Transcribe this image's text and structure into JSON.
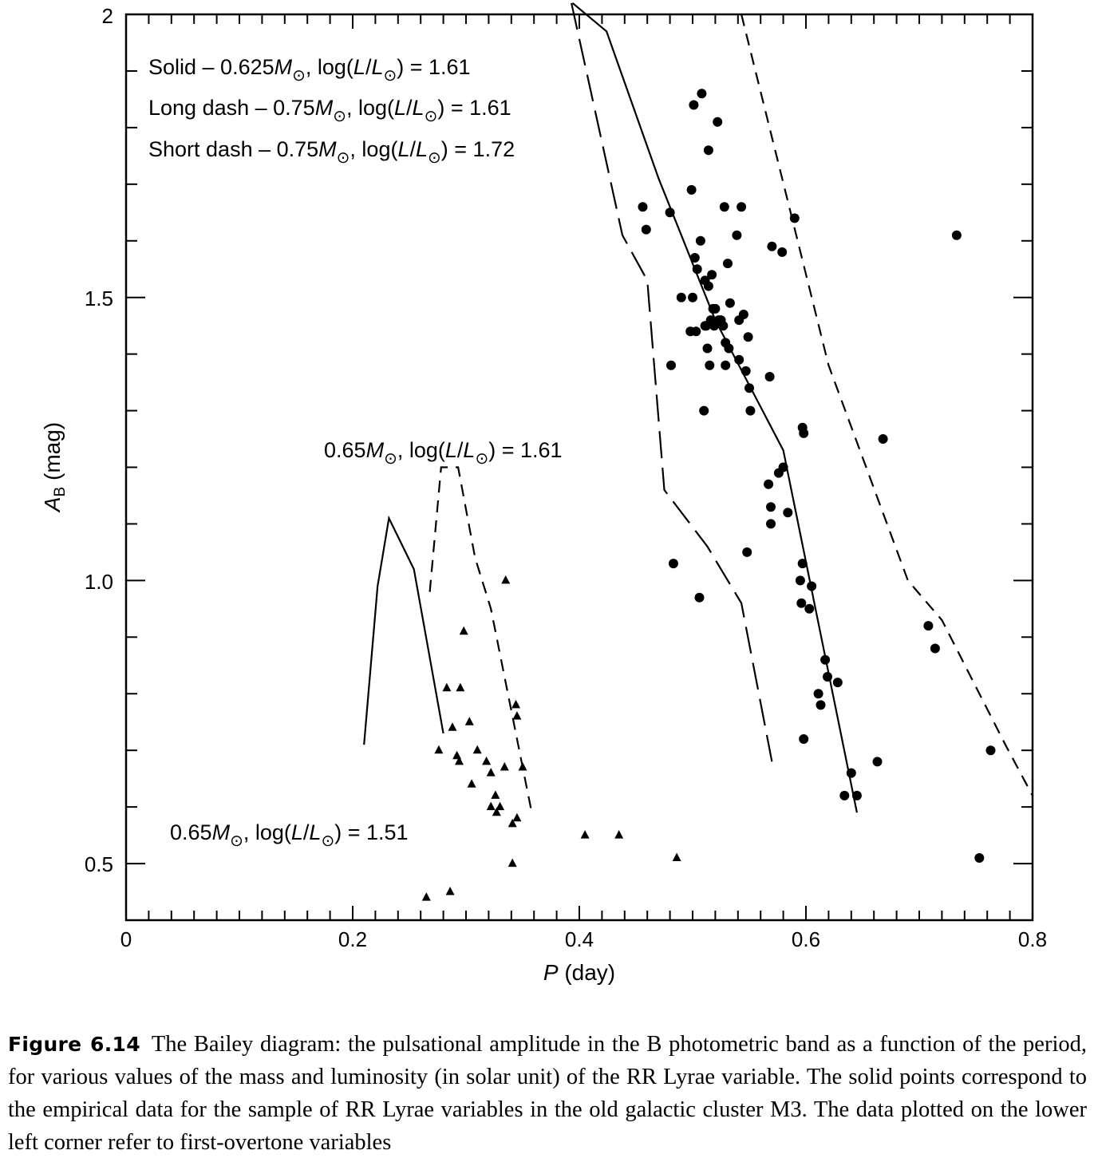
{
  "chart_data": {
    "type": "scatter",
    "title": "",
    "xlabel": "P (day)",
    "ylabel": "A_B (mag)",
    "xlim": [
      0,
      0.8
    ],
    "ylim": [
      0.4,
      2.0
    ],
    "x_ticks": [
      "0",
      "0.2",
      "0.4",
      "0.6",
      "0.8"
    ],
    "y_ticks": [
      "0.5",
      "1.0",
      "1.5",
      "2"
    ],
    "legend": [
      {
        "key": "Solid",
        "mass": "0.625",
        "loglum": "1.61"
      },
      {
        "key": "Long dash",
        "mass": "0.75",
        "loglum": "1.61"
      },
      {
        "key": "Short dash",
        "mass": "0.75",
        "loglum": "1.72"
      }
    ],
    "annotations": [
      {
        "mass": "0.65",
        "loglum": "1.61"
      },
      {
        "mass": "0.65",
        "loglum": "1.51"
      }
    ],
    "series": [
      {
        "name": "Solid – 0.625 Msun, log(L/Lsun) = 1.61 (fundamental)",
        "style": "solid",
        "points": [
          [
            0.394,
            2.02
          ],
          [
            0.424,
            1.97
          ],
          [
            0.47,
            1.71
          ],
          [
            0.52,
            1.46
          ],
          [
            0.58,
            1.23
          ],
          [
            0.645,
            0.59
          ]
        ]
      },
      {
        "name": "Long dash – 0.75 Msun, log(L/Lsun) = 1.61 (fundamental)",
        "style": "long-dash",
        "points": [
          [
            0.393,
            2.02
          ],
          [
            0.438,
            1.61
          ],
          [
            0.46,
            1.53
          ],
          [
            0.475,
            1.16
          ],
          [
            0.513,
            1.06
          ],
          [
            0.543,
            0.96
          ],
          [
            0.57,
            0.68
          ]
        ]
      },
      {
        "name": "Short dash – 0.75 Msun, log(L/Lsun) = 1.72 (fundamental)",
        "style": "short-dash",
        "points": [
          [
            0.543,
            2.0
          ],
          [
            0.62,
            1.38
          ],
          [
            0.69,
            1.0
          ],
          [
            0.72,
            0.93
          ],
          [
            0.776,
            0.71
          ],
          [
            0.8,
            0.62
          ]
        ]
      },
      {
        "name": "0.65 Msun, log(L/Lsun) = 1.51 (first overtone)",
        "style": "solid",
        "points": [
          [
            0.21,
            0.71
          ],
          [
            0.222,
            0.99
          ],
          [
            0.232,
            1.11
          ],
          [
            0.254,
            1.02
          ],
          [
            0.28,
            0.73
          ]
        ]
      },
      {
        "name": "0.65 Msun, log(L/Lsun) = 1.61 (first overtone)",
        "style": "short-dash",
        "points": [
          [
            0.268,
            0.98
          ],
          [
            0.278,
            1.2
          ],
          [
            0.293,
            1.2
          ],
          [
            0.308,
            1.04
          ],
          [
            0.322,
            0.95
          ],
          [
            0.358,
            0.59
          ]
        ]
      },
      {
        "name": "M3 RRab (fundamental, solid points)",
        "marker": "circle",
        "points": [
          [
            0.456,
            1.66
          ],
          [
            0.459,
            1.62
          ],
          [
            0.48,
            1.65
          ],
          [
            0.481,
            1.38
          ],
          [
            0.483,
            1.03
          ],
          [
            0.49,
            1.5
          ],
          [
            0.498,
            1.44
          ],
          [
            0.499,
            1.69
          ],
          [
            0.5,
            1.5
          ],
          [
            0.501,
            1.84
          ],
          [
            0.502,
            1.57
          ],
          [
            0.503,
            1.44
          ],
          [
            0.504,
            1.55
          ],
          [
            0.506,
            0.97
          ],
          [
            0.507,
            1.6
          ],
          [
            0.508,
            1.86
          ],
          [
            0.51,
            1.3
          ],
          [
            0.511,
            1.53
          ],
          [
            0.511,
            1.45
          ],
          [
            0.512,
            1.45
          ],
          [
            0.513,
            1.41
          ],
          [
            0.514,
            1.76
          ],
          [
            0.514,
            1.52
          ],
          [
            0.515,
            1.38
          ],
          [
            0.516,
            1.46
          ],
          [
            0.517,
            1.54
          ],
          [
            0.518,
            1.48
          ],
          [
            0.519,
            1.45
          ],
          [
            0.52,
            1.48
          ],
          [
            0.522,
            1.81
          ],
          [
            0.523,
            1.46
          ],
          [
            0.525,
            1.46
          ],
          [
            0.527,
            1.45
          ],
          [
            0.528,
            1.66
          ],
          [
            0.529,
            1.42
          ],
          [
            0.529,
            1.38
          ],
          [
            0.531,
            1.56
          ],
          [
            0.532,
            1.41
          ],
          [
            0.533,
            1.49
          ],
          [
            0.539,
            1.61
          ],
          [
            0.541,
            1.39
          ],
          [
            0.541,
            1.46
          ],
          [
            0.543,
            1.66
          ],
          [
            0.545,
            1.47
          ],
          [
            0.547,
            1.37
          ],
          [
            0.548,
            1.05
          ],
          [
            0.549,
            1.43
          ],
          [
            0.55,
            1.34
          ],
          [
            0.551,
            1.3
          ],
          [
            0.567,
            1.17
          ],
          [
            0.568,
            1.36
          ],
          [
            0.569,
            1.13
          ],
          [
            0.569,
            1.1
          ],
          [
            0.57,
            1.59
          ],
          [
            0.576,
            1.19
          ],
          [
            0.579,
            1.58
          ],
          [
            0.58,
            1.2
          ],
          [
            0.584,
            1.12
          ],
          [
            0.59,
            1.64
          ],
          [
            0.595,
            1.0
          ],
          [
            0.596,
            0.96
          ],
          [
            0.597,
            1.03
          ],
          [
            0.597,
            1.27
          ],
          [
            0.598,
            1.26
          ],
          [
            0.598,
            0.72
          ],
          [
            0.603,
            0.95
          ],
          [
            0.605,
            0.99
          ],
          [
            0.611,
            0.8
          ],
          [
            0.613,
            0.78
          ],
          [
            0.617,
            0.86
          ],
          [
            0.619,
            0.83
          ],
          [
            0.628,
            0.82
          ],
          [
            0.634,
            0.62
          ],
          [
            0.64,
            0.66
          ],
          [
            0.645,
            0.62
          ],
          [
            0.663,
            0.68
          ],
          [
            0.668,
            1.25
          ],
          [
            0.708,
            0.92
          ],
          [
            0.714,
            0.88
          ],
          [
            0.733,
            1.61
          ],
          [
            0.753,
            0.51
          ],
          [
            0.763,
            0.7
          ]
        ]
      },
      {
        "name": "M3 RRc (first overtone, triangles)",
        "marker": "triangle",
        "points": [
          [
            0.265,
            0.44
          ],
          [
            0.276,
            0.7
          ],
          [
            0.283,
            0.81
          ],
          [
            0.286,
            0.45
          ],
          [
            0.288,
            0.74
          ],
          [
            0.292,
            0.69
          ],
          [
            0.294,
            0.68
          ],
          [
            0.295,
            0.81
          ],
          [
            0.298,
            0.91
          ],
          [
            0.303,
            0.75
          ],
          [
            0.305,
            0.64
          ],
          [
            0.31,
            0.7
          ],
          [
            0.318,
            0.68
          ],
          [
            0.322,
            0.66
          ],
          [
            0.322,
            0.6
          ],
          [
            0.326,
            0.62
          ],
          [
            0.327,
            0.59
          ],
          [
            0.33,
            0.6
          ],
          [
            0.334,
            0.67
          ],
          [
            0.335,
            1.0
          ],
          [
            0.341,
            0.5
          ],
          [
            0.341,
            0.57
          ],
          [
            0.344,
            0.78
          ],
          [
            0.345,
            0.76
          ],
          [
            0.345,
            0.58
          ],
          [
            0.35,
            0.67
          ],
          [
            0.405,
            0.55
          ],
          [
            0.435,
            0.55
          ],
          [
            0.486,
            0.51
          ]
        ]
      }
    ]
  },
  "caption": {
    "label": "Figure 6.14",
    "text": "The Bailey diagram: the pulsational amplitude in the B photometric band as a function of the period, for various values of the mass and luminosity (in solar unit) of the RR Lyrae variable. The solid points correspond to the empirical data for the sample of RR Lyrae variables in the old galactic cluster M3. The data plotted on the lower left corner refer to first-overtone variables"
  }
}
